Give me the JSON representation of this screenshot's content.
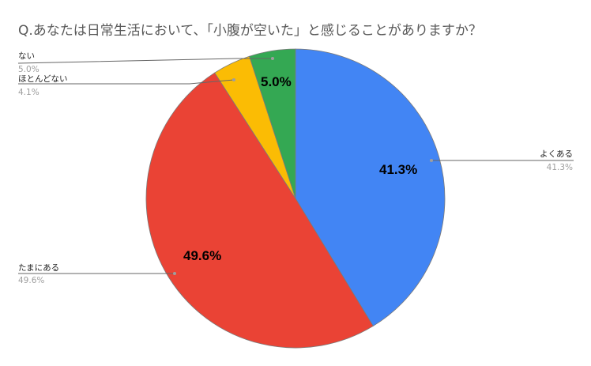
{
  "chart_data": {
    "type": "pie",
    "title": "Q.あなたは日常生活において、「小腹が空いた」と感じることがありますか？",
    "categories": [
      "よくある",
      "たまにある",
      "ほとんどない",
      "ない"
    ],
    "values": [
      41.3,
      49.6,
      4.1,
      5.0
    ],
    "colors": [
      "#4285f4",
      "#ea4335",
      "#fbbc04",
      "#34a853"
    ],
    "labels": [
      "41.3%",
      "49.6%",
      "4.1%",
      "5.0%"
    ],
    "inner_labels": [
      "41.3%",
      "49.6%",
      "",
      "5.0%"
    ],
    "start_angle": "12 o'clock, clockwise",
    "legend_position": "labeled callouts"
  },
  "header": {
    "title": "Q.あなたは日常生活において、「小腹が空いた」と感じることがありますか？"
  },
  "callouts": {
    "often": {
      "label": "よくある",
      "pct": "41.3%"
    },
    "sometimes": {
      "label": "たまにある",
      "pct": "49.6%"
    },
    "rarely": {
      "label": "ほとんどない",
      "pct": "4.1%"
    },
    "never": {
      "label": "ない",
      "pct": "5.0%"
    }
  },
  "inner": {
    "often": "41.3%",
    "sometimes": "49.6%",
    "never": "5.0%"
  }
}
